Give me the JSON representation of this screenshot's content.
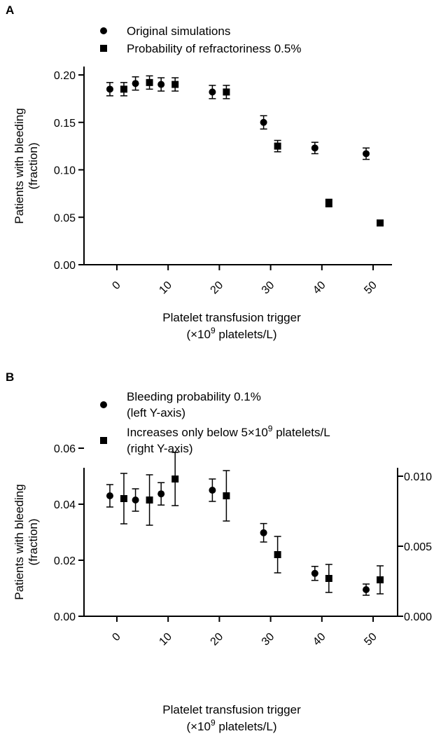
{
  "chart_data": [
    {
      "panel_label": "A",
      "type": "scatter",
      "xlabel_line1": "Platelet transfusion trigger",
      "xlabel_line2_pre": "(×10",
      "xlabel_line2_sup": "9",
      "xlabel_line2_post": " platelets/L)",
      "ylabel_line1": "Patients with bleeding",
      "ylabel_line2": "(fraction)",
      "x_ticks": [
        0,
        10,
        20,
        30,
        40,
        50
      ],
      "x_tick_labels": [
        "0",
        "10",
        "20",
        "30",
        "40",
        "50"
      ],
      "xlim": [
        -3,
        53
      ],
      "ylim": [
        0,
        0.2
      ],
      "y_ticks": [
        0.0,
        0.05,
        0.1,
        0.15,
        0.2
      ],
      "y_tick_labels": [
        "0.00",
        "0.05",
        "0.10",
        "0.15",
        "0.20"
      ],
      "grid": false,
      "legend_position": "top-left",
      "series": [
        {
          "name": "Original simulations",
          "marker": "circle",
          "axis": "left",
          "points": [
            {
              "x": 0,
              "y": 0.185,
              "err": 0.007
            },
            {
              "x": 5,
              "y": 0.191,
              "err": 0.007
            },
            {
              "x": 10,
              "y": 0.19,
              "err": 0.007
            },
            {
              "x": 20,
              "y": 0.182,
              "err": 0.007
            },
            {
              "x": 30,
              "y": 0.15,
              "err": 0.007
            },
            {
              "x": 40,
              "y": 0.123,
              "err": 0.006
            },
            {
              "x": 50,
              "y": 0.117,
              "err": 0.006
            }
          ]
        },
        {
          "name": "Probability of refractoriness 0.5%",
          "marker": "square",
          "axis": "left",
          "points": [
            {
              "x": 0,
              "y": 0.185,
              "err": 0.007
            },
            {
              "x": 5,
              "y": 0.192,
              "err": 0.007
            },
            {
              "x": 10,
              "y": 0.19,
              "err": 0.007
            },
            {
              "x": 20,
              "y": 0.182,
              "err": 0.007
            },
            {
              "x": 30,
              "y": 0.125,
              "err": 0.006
            },
            {
              "x": 40,
              "y": 0.065,
              "err": 0.004
            },
            {
              "x": 50,
              "y": 0.044,
              "err": 0.003
            }
          ]
        }
      ]
    },
    {
      "panel_label": "B",
      "type": "scatter",
      "xlabel_line1": "Platelet transfusion trigger",
      "xlabel_line2_pre": "(×10",
      "xlabel_line2_sup": "9",
      "xlabel_line2_post": " platelets/L)",
      "ylabel_line1": "Patients with bleeding",
      "ylabel_line2": "(fraction)",
      "x_ticks": [
        0,
        10,
        20,
        30,
        40,
        50
      ],
      "x_tick_labels": [
        "0",
        "10",
        "20",
        "30",
        "40",
        "50"
      ],
      "xlim": [
        -3,
        53
      ],
      "ylim": [
        0,
        0.06
      ],
      "y_ticks": [
        0.0,
        0.02,
        0.04,
        0.06
      ],
      "y_tick_labels": [
        "0.00",
        "0.02",
        "0.04",
        "0.06"
      ],
      "ylim_right": [
        0,
        0.012
      ],
      "y_ticks_right": [
        0.0,
        0.005,
        0.01
      ],
      "y_tick_labels_right": [
        "0.000",
        "0.005",
        "0.010"
      ],
      "grid": false,
      "legend_position": "top-left",
      "series": [
        {
          "name_line1": "Bleeding probability 0.1%",
          "name_line2": "(left Y-axis)",
          "marker": "circle",
          "axis": "left",
          "points": [
            {
              "x": 0,
              "y": 0.043,
              "err": 0.004
            },
            {
              "x": 5,
              "y": 0.0415,
              "err": 0.004
            },
            {
              "x": 10,
              "y": 0.0437,
              "err": 0.004
            },
            {
              "x": 20,
              "y": 0.045,
              "err": 0.004
            },
            {
              "x": 30,
              "y": 0.0298,
              "err": 0.0033
            },
            {
              "x": 40,
              "y": 0.0153,
              "err": 0.0025
            },
            {
              "x": 50,
              "y": 0.0095,
              "err": 0.002
            }
          ]
        },
        {
          "name_line1": "Increases only below 5×10",
          "name_sup": "9",
          "name_post": " platelets/L",
          "name_line2": "(right Y-axis)",
          "marker": "square",
          "axis": "right",
          "points": [
            {
              "x": 0,
              "y": 0.0084,
              "err": 0.0018
            },
            {
              "x": 5,
              "y": 0.0083,
              "err": 0.0018
            },
            {
              "x": 10,
              "y": 0.0098,
              "err": 0.0019
            },
            {
              "x": 20,
              "y": 0.0086,
              "err": 0.0018
            },
            {
              "x": 30,
              "y": 0.0044,
              "err": 0.0013
            },
            {
              "x": 40,
              "y": 0.0027,
              "err": 0.001
            },
            {
              "x": 50,
              "y": 0.0026,
              "err": 0.001
            }
          ]
        }
      ]
    }
  ]
}
